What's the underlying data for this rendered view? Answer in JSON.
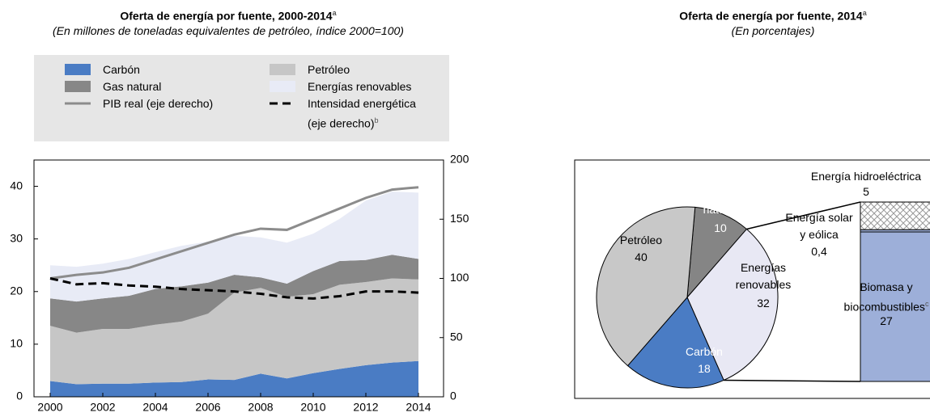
{
  "chart_data": [
    {
      "type": "stacked-area-line",
      "title": "Oferta de energía por fuente, 2000-2014",
      "title_note": "a",
      "subtitle": "(En millones de toneladas equivalentes de petróleo, índice 2000=100)",
      "x": [
        2000,
        2001,
        2002,
        2003,
        2004,
        2005,
        2006,
        2007,
        2008,
        2009,
        2010,
        2011,
        2012,
        2013,
        2014
      ],
      "xlim": [
        2000,
        2014
      ],
      "xticks": [
        2000,
        2002,
        2004,
        2006,
        2008,
        2010,
        2012,
        2014
      ],
      "ylim": [
        0,
        45
      ],
      "yticks": [
        0,
        10,
        20,
        30,
        40
      ],
      "y2lim": [
        0,
        200
      ],
      "y2ticks": [
        0,
        50,
        100,
        150,
        200
      ],
      "series": [
        {
          "name": "Carbón",
          "color": "#4a7cc4",
          "values": [
            3.0,
            2.4,
            2.5,
            2.5,
            2.7,
            2.8,
            3.3,
            3.2,
            4.4,
            3.5,
            4.5,
            5.3,
            6.0,
            6.5,
            6.8
          ]
        },
        {
          "name": "Petróleo",
          "color": "#c6c6c6",
          "values": [
            10.5,
            9.8,
            10.4,
            10.4,
            11.0,
            11.5,
            12.5,
            16.6,
            16.3,
            15.5,
            15.0,
            16.0,
            15.8,
            16.0,
            15.5
          ]
        },
        {
          "name": "Gas natural",
          "color": "#878787",
          "values": [
            5.2,
            5.9,
            5.8,
            6.3,
            6.8,
            6.7,
            5.9,
            3.4,
            2.0,
            2.5,
            4.4,
            4.5,
            4.2,
            4.5,
            3.9
          ]
        },
        {
          "name": "Energías renovables",
          "color": "#e8ebf6",
          "values": [
            6.3,
            6.6,
            6.6,
            7.0,
            7.0,
            7.7,
            7.8,
            7.4,
            7.6,
            7.8,
            7.1,
            8.0,
            11.3,
            12.0,
            12.6
          ]
        },
        {
          "name": "PIB real (eje derecho)",
          "color": "#8c8c8c",
          "axis": "y2",
          "values": [
            100,
            103,
            105,
            109,
            116,
            123,
            130,
            137,
            142,
            141,
            150,
            159,
            168,
            175,
            177
          ]
        },
        {
          "name": "Intensidad energética (eje derecho)",
          "note": "b",
          "color": "#000000",
          "axis": "y2",
          "dashed": true,
          "values": [
            100,
            95,
            96,
            94,
            93,
            91,
            90,
            89,
            87,
            84,
            83,
            85,
            89,
            89,
            88
          ]
        }
      ]
    },
    {
      "type": "pie-of-bar",
      "title": "Oferta de energía por fuente, 2014",
      "title_note": "a",
      "subtitle": "(En porcentajes)",
      "categories": [
        "Gas natural",
        "Energías renovables",
        "Carbón",
        "Petróleo"
      ],
      "values": [
        10,
        32,
        18,
        40
      ],
      "colors": [
        "#858585",
        "#e8e8f4",
        "#4a7cc4",
        "#c8c8c8"
      ],
      "breakdown": {
        "categories": [
          "Energía hidroeléctrica",
          "Energía solar y eólica",
          "Biomasa y biocombustibles"
        ],
        "values": [
          5,
          0.4,
          27
        ],
        "value_labels": [
          "5",
          "0,4",
          "27"
        ],
        "colors": [
          "#ffffff",
          "#9dafd9",
          "#9dafd9"
        ],
        "note": "c"
      }
    }
  ]
}
